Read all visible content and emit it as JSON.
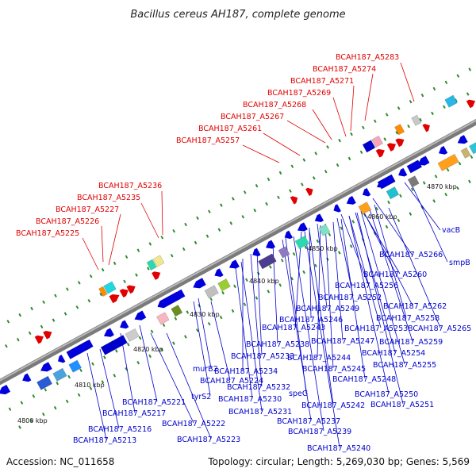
{
  "title": "Bacillus cereus AH187, complete genome",
  "accession": "Accession: NC_011658",
  "topology": "Topology: circular; Length: 5,269,030 bp; Genes: 5,569",
  "colors": {
    "backbone": "#8a8a8a",
    "forward_gene": "#e00000",
    "reverse_gene": "#0000dd",
    "upper_label": "#e00000",
    "lower_label": "#0000cc",
    "tick": "#2e8b2e"
  },
  "scale_labels": [
    "4800 kbp",
    "4810 kbp",
    "4820 kbp",
    "4830 kbp",
    "4840 kbp",
    "4850 kbp",
    "4860 kbp",
    "4870 kbp"
  ],
  "upper_labels": [
    "BCAH187_A5283",
    "BCAH187_A5274",
    "BCAH187_A5271",
    "BCAH187_A5269",
    "BCAH187_A5268",
    "BCAH187_A5267",
    "BCAH187_A5261",
    "BCAH187_A5257",
    "BCAH187_A5236",
    "BCAH187_A5235",
    "BCAH187_A5227",
    "BCAH187_A5226",
    "BCAH187_A5225"
  ],
  "lower_labels": [
    "vacB",
    "smpB",
    "BCAH187_A5266",
    "BCAH187_A5260",
    "BCAH187_A5256",
    "BCAH187_A5262",
    "BCAH187_A5252",
    "BCAH187_A5249",
    "BCAH187_A5258",
    "BCAH187_A5246",
    "BCAH187_A5253",
    "BCAH187_A5265",
    "BCAH187_A5243",
    "BCAH187_A5259",
    "BCAH187_A5238",
    "BCAH187_A5247",
    "BCAH187_A5254",
    "BCAH187_A5233",
    "BCAH187_A5244",
    "BCAH187_A5255",
    "BCAH187_A5234",
    "BCAH187_A5245",
    "murB2",
    "BCAH187_A5248",
    "BCAH187_A5224",
    "BCAH187_A5232",
    "speG",
    "BCAH187_A5250",
    "tyrS2",
    "BCAH187_A5230",
    "BCAH187_A5221",
    "BCAH187_A5242",
    "BCAH187_A5251",
    "BCAH187_A5217",
    "BCAH187_A5231",
    "BCAH187_A5222",
    "BCAH187_A5237",
    "BCAH187_A5216",
    "BCAH187_A5239",
    "BCAH187_A5223",
    "BCAH187_A5213",
    "BCAH187_A5240"
  ]
}
